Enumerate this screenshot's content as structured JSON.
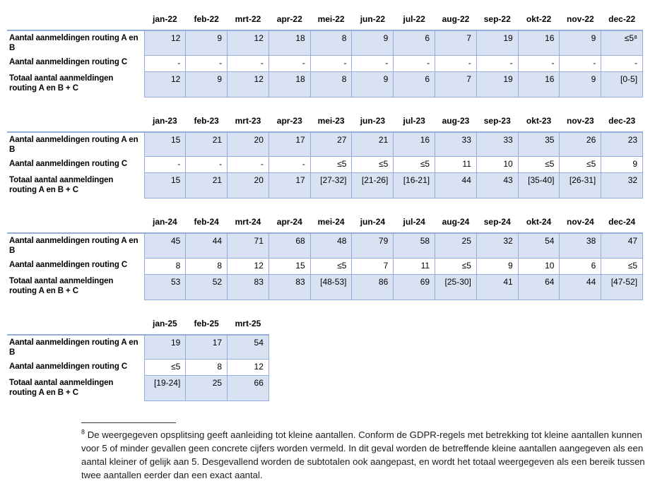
{
  "colors": {
    "cell-fill": "#D9E2F3",
    "cell-border": "#95ADDB",
    "text-color": "#000000",
    "rule-color": "#333333"
  },
  "tables": [
    {
      "year": "2022",
      "months": [
        "jan-22",
        "feb-22",
        "mrt-22",
        "apr-22",
        "mei-22",
        "jun-22",
        "jul-22",
        "aug-22",
        "sep-22",
        "okt-22",
        "nov-22",
        "dec-22"
      ],
      "rows": [
        {
          "label": "Aantal aanmeldingen routing A en B",
          "shaded": true,
          "values": [
            "12",
            "9",
            "12",
            "18",
            "8",
            "9",
            "6",
            "7",
            "19",
            "16",
            "9",
            "≤5⁸"
          ]
        },
        {
          "label": "Aantal aanmeldingen routing C",
          "shaded": false,
          "values": [
            "-",
            "-",
            "-",
            "-",
            "-",
            "-",
            "-",
            "-",
            "-",
            "-",
            "-",
            "-"
          ]
        },
        {
          "label": "Totaal aantal aanmeldingen routing A en B + C",
          "shaded": true,
          "values": [
            "12",
            "9",
            "12",
            "18",
            "8",
            "9",
            "6",
            "7",
            "19",
            "16",
            "9",
            "[0-5]"
          ]
        }
      ]
    },
    {
      "year": "2023",
      "months": [
        "jan-23",
        "feb-23",
        "mrt-23",
        "apr-23",
        "mei-23",
        "jun-23",
        "jul-23",
        "aug-23",
        "sep-23",
        "okt-23",
        "nov-23",
        "dec-23"
      ],
      "rows": [
        {
          "label": "Aantal aanmeldingen routing A en B",
          "shaded": true,
          "values": [
            "15",
            "21",
            "20",
            "17",
            "27",
            "21",
            "16",
            "33",
            "33",
            "35",
            "26",
            "23"
          ]
        },
        {
          "label": "Aantal aanmeldingen routing C",
          "shaded": false,
          "values": [
            "-",
            "-",
            "-",
            "-",
            "≤5",
            "≤5",
            "≤5",
            "11",
            "10",
            "≤5",
            "≤5",
            "9"
          ]
        },
        {
          "label": "Totaal aantal aanmeldingen routing A en B + C",
          "shaded": true,
          "values": [
            "15",
            "21",
            "20",
            "17",
            "[27-32]",
            "[21-26]",
            "[16-21]",
            "44",
            "43",
            "[35-40]",
            "[26-31]",
            "32"
          ]
        }
      ]
    },
    {
      "year": "2024",
      "months": [
        "jan-24",
        "feb-24",
        "mrt-24",
        "apr-24",
        "mei-24",
        "jun-24",
        "jul-24",
        "aug-24",
        "sep-24",
        "okt-24",
        "nov-24",
        "dec-24"
      ],
      "rows": [
        {
          "label": "Aantal aanmeldingen routing A en B",
          "shaded": true,
          "values": [
            "45",
            "44",
            "71",
            "68",
            "48",
            "79",
            "58",
            "25",
            "32",
            "54",
            "38",
            "47"
          ]
        },
        {
          "label": "Aantal aanmeldingen routing C",
          "shaded": false,
          "values": [
            "8",
            "8",
            "12",
            "15",
            "≤5",
            "7",
            "11",
            "≤5",
            "9",
            "10",
            "6",
            "≤5"
          ]
        },
        {
          "label": "Totaal aantal aanmeldingen routing A en B + C",
          "shaded": true,
          "values": [
            "53",
            "52",
            "83",
            "83",
            "[48-53]",
            "86",
            "69",
            "[25-30]",
            "41",
            "64",
            "44",
            "[47-52]"
          ]
        }
      ]
    },
    {
      "year": "2025",
      "months": [
        "jan-25",
        "feb-25",
        "mrt-25"
      ],
      "rows": [
        {
          "label": "Aantal aanmeldingen routing A en B",
          "shaded": true,
          "values": [
            "19",
            "17",
            "54"
          ]
        },
        {
          "label": "Aantal aanmeldingen routing C",
          "shaded": false,
          "values": [
            "≤5",
            "8",
            "12"
          ]
        },
        {
          "label": "Totaal aantal aanmeldingen routing A en B + C",
          "shaded": true,
          "values": [
            "[19-24]",
            "25",
            "66"
          ]
        }
      ]
    }
  ],
  "footnote": {
    "marker": "8",
    "text": "De weergegeven opsplitsing geeft aanleiding tot kleine aantallen. Conform de GDPR-regels met betrekking tot kleine aantallen kunnen voor 5 of minder gevallen geen concrete cijfers worden vermeld. In dit geval worden de betreffende kleine aantallen aangegeven als een aantal kleiner of gelijk aan 5. Desgevallend worden de subtotalen ook aangepast, en wordt het totaal weergegeven als een bereik tussen twee aantallen eerder dan een exact aantal."
  }
}
